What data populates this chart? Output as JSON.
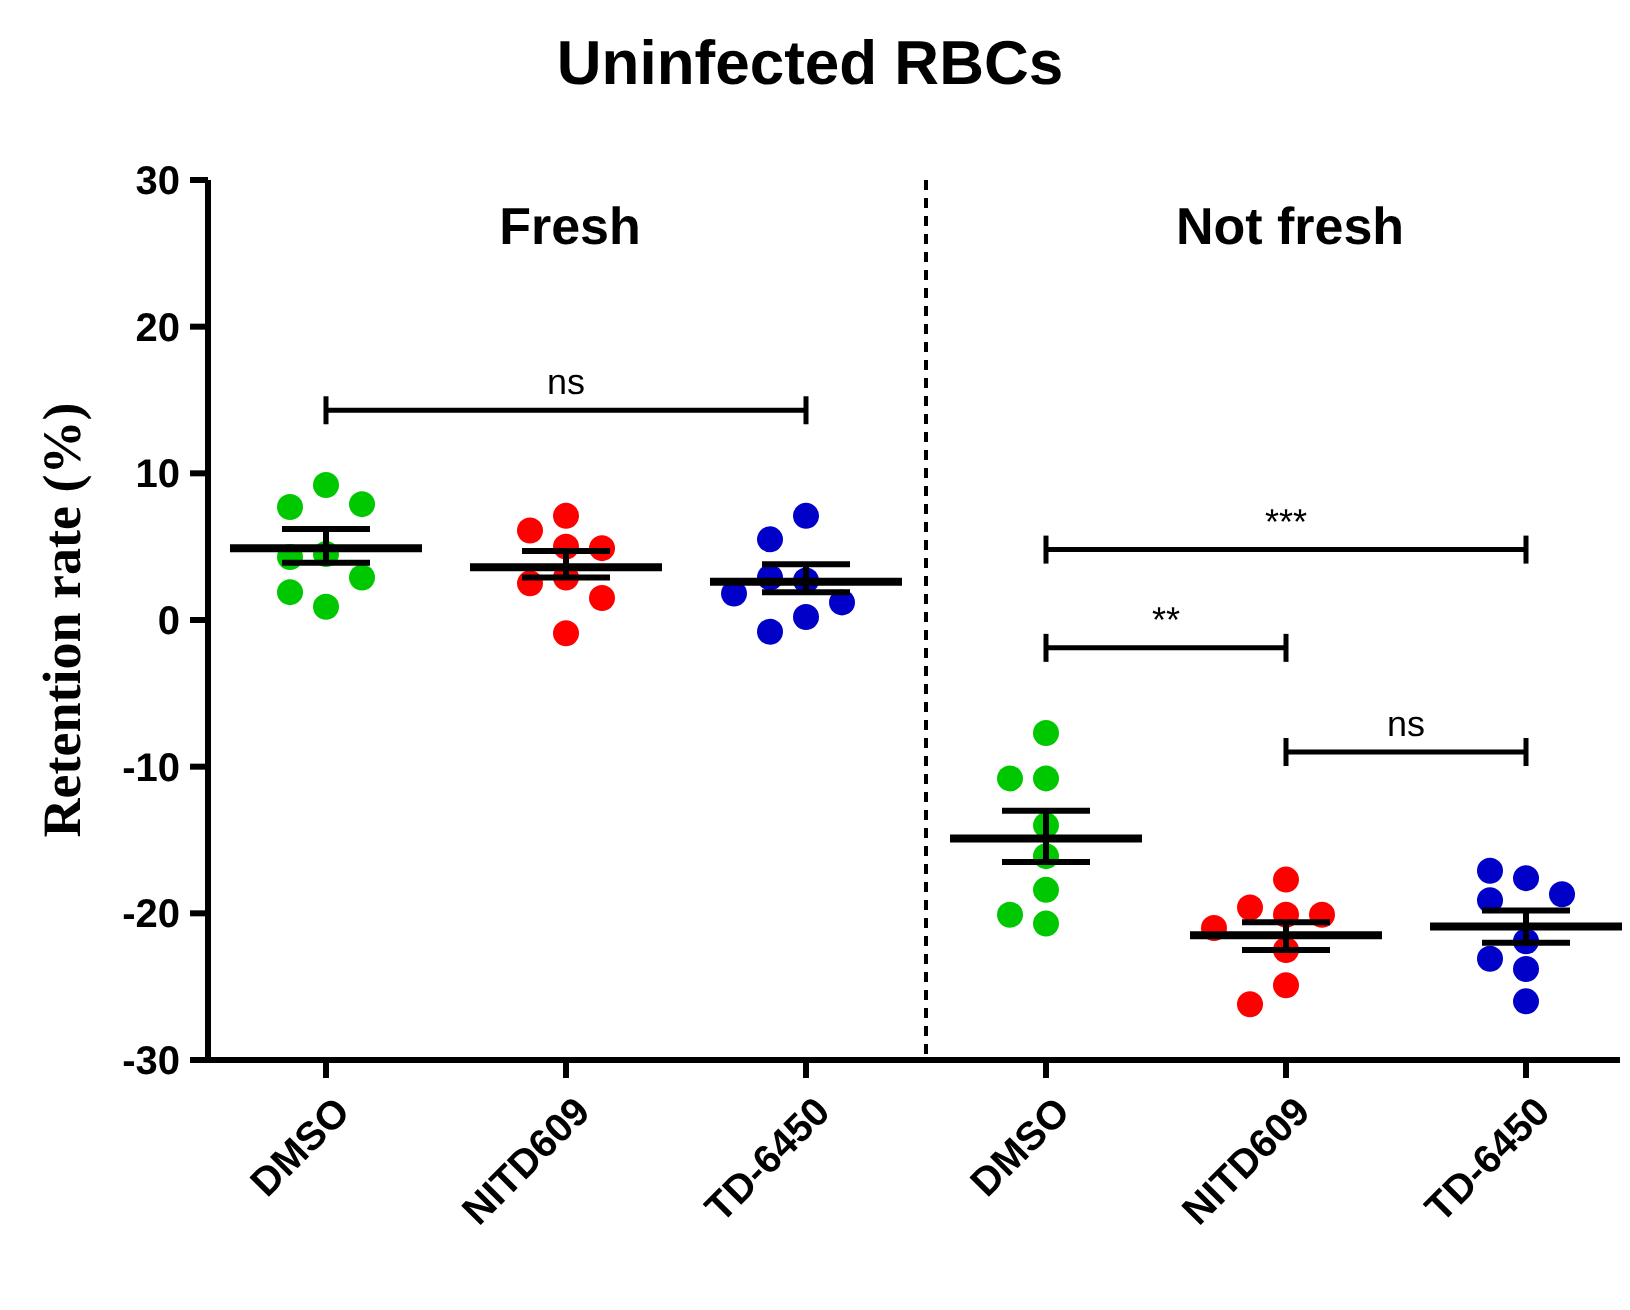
{
  "chart_data": {
    "type": "scatter",
    "title": "Uninfected RBCs",
    "ylabel": "Retention rate (%)",
    "categories": [
      "DMSO",
      "NITD609",
      "TD-6450",
      "DMSO",
      "NITD609",
      "TD-6450"
    ],
    "ylim": [
      -30,
      30
    ],
    "yticks": [
      -30,
      -20,
      -10,
      0,
      10,
      20,
      30
    ],
    "grid": false,
    "marker": "circle",
    "series": [
      {
        "colors": [
          "#00c800",
          "#ff0000",
          "#0000c8",
          "#00c800",
          "#ff0000",
          "#0000c8"
        ],
        "values": [
          9.2,
          7.1,
          7.1,
          -7.7,
          -17.7,
          -17.6
        ]
      },
      {
        "colors": [
          "#00c800",
          "#ff0000",
          "#0000c8",
          "#00c800",
          "#ff0000",
          "#0000c8"
        ],
        "values": [
          7.7,
          6.1,
          5.5,
          -10.8,
          -20.1,
          -17.1
        ]
      },
      {
        "colors": [
          "#00c800",
          "#ff0000",
          "#0000c8",
          "#00c800",
          "#ff0000",
          "#0000c8"
        ],
        "values": [
          7.9,
          5.0,
          2.7,
          -10.8,
          -19.6,
          -19.1
        ]
      },
      {
        "colors": [
          "#00c800",
          "#ff0000",
          "#0000c8",
          "#00c800",
          "#ff0000",
          "#0000c8"
        ],
        "values": [
          4.5,
          4.9,
          2.9,
          -14.0,
          -20.1,
          -18.7
        ]
      },
      {
        "colors": [
          "#00c800",
          "#ff0000",
          "#0000c8",
          "#00c800",
          "#ff0000",
          "#0000c8"
        ],
        "values": [
          4.3,
          2.9,
          1.2,
          -16.1,
          -21.0,
          -21.9
        ]
      },
      {
        "colors": [
          "#00c800",
          "#ff0000",
          "#0000c8",
          "#00c800",
          "#ff0000",
          "#0000c8"
        ],
        "values": [
          2.9,
          2.5,
          1.8,
          -18.4,
          -22.5,
          -23.1
        ]
      },
      {
        "colors": [
          "#00c800",
          "#ff0000",
          "#0000c8",
          "#00c800",
          "#ff0000",
          "#0000c8"
        ],
        "values": [
          0.9,
          1.5,
          0.2,
          -20.1,
          -24.9,
          -23.8
        ]
      },
      {
        "colors": [
          "#00c800",
          "#ff0000",
          "#0000c8",
          "#00c800",
          "#ff0000",
          "#0000c8"
        ],
        "values": [
          1.9,
          -0.9,
          -0.8,
          -20.7,
          -26.2,
          -26.0
        ]
      },
      {
        "type": "box",
        "color": "#000000",
        "boxes": [
          {
            "low": 3.9,
            "q1": 4.9,
            "median": 4.9,
            "q3": 4.9,
            "high": 6.2
          },
          {
            "low": 2.9,
            "q1": 3.6,
            "median": 3.6,
            "q3": 3.6,
            "high": 4.7
          },
          {
            "low": 1.9,
            "q1": 2.6,
            "median": 2.6,
            "q3": 2.6,
            "high": 3.8
          },
          {
            "low": -16.5,
            "q1": -14.9,
            "median": -14.9,
            "q3": -14.9,
            "high": -13.0
          },
          {
            "low": -22.5,
            "q1": -21.5,
            "median": -21.5,
            "q3": -21.5,
            "high": -20.6
          },
          {
            "low": -22.0,
            "q1": -20.9,
            "median": -20.9,
            "q3": -20.9,
            "high": -19.8
          }
        ]
      }
    ],
    "annotations": [
      "Fresh",
      "Not fresh",
      "ns",
      "***",
      "**",
      "ns"
    ]
  }
}
